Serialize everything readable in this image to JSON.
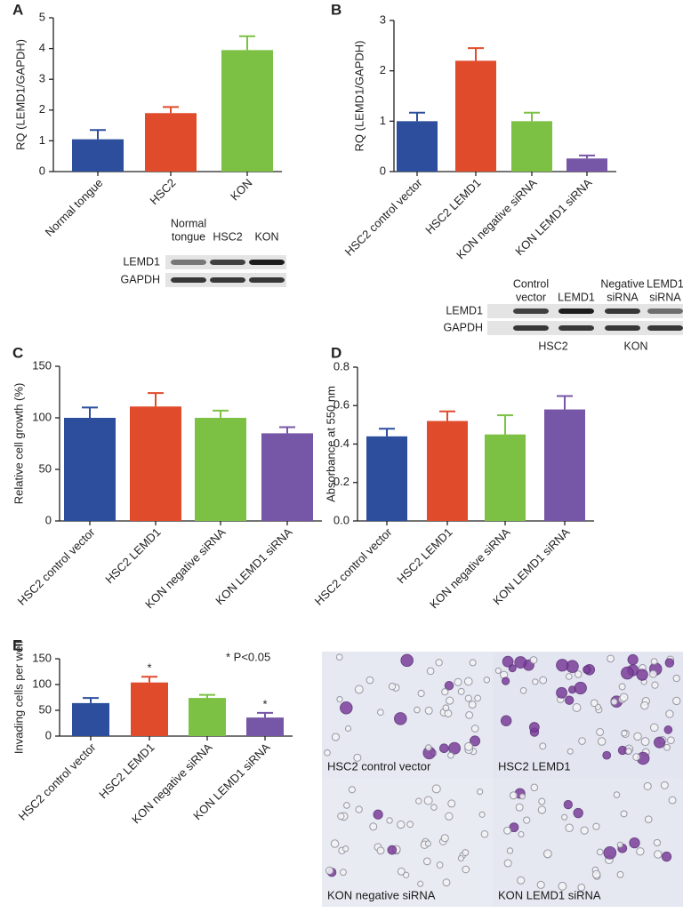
{
  "chart_data": [
    {
      "type": "bar",
      "panel": "A",
      "y_label": "RQ (LEMD1/GAPDH)",
      "categories": [
        "Normal tongue",
        "HSC2",
        "KON"
      ],
      "values": [
        1.05,
        1.9,
        3.95
      ],
      "errors": [
        0.3,
        0.2,
        0.45
      ],
      "colors": [
        "#2c4e9c",
        "#e04b2b",
        "#7cc143"
      ],
      "ylim": [
        0,
        5
      ],
      "yticks": [
        0,
        1,
        2,
        3,
        4,
        5
      ]
    },
    {
      "type": "bar",
      "panel": "B",
      "y_label": "RQ (LEMD1/GAPDH)",
      "categories": [
        "HSC2 control vector",
        "HSC2 LEMD1",
        "KON negative siRNA",
        "KON LEMD1 siRNA"
      ],
      "values": [
        1.0,
        2.2,
        1.0,
        0.26
      ],
      "errors": [
        0.17,
        0.25,
        0.17,
        0.06
      ],
      "colors": [
        "#2c4e9c",
        "#e04b2b",
        "#7cc143",
        "#7656a6"
      ],
      "ylim": [
        0,
        3
      ],
      "yticks": [
        0,
        1,
        2,
        3
      ]
    },
    {
      "type": "bar",
      "panel": "C",
      "y_label": "Relative cell growth (%)",
      "categories": [
        "HSC2 control vector",
        "HSC2 LEMD1",
        "KON negative siRNA",
        "KON LEMD1 siRNA"
      ],
      "values": [
        100,
        111,
        100,
        85
      ],
      "errors": [
        10,
        13,
        7,
        6
      ],
      "colors": [
        "#2c4e9c",
        "#e04b2b",
        "#7cc143",
        "#7656a6"
      ],
      "ylim": [
        0,
        150
      ],
      "yticks": [
        0,
        50,
        100,
        150
      ]
    },
    {
      "type": "bar",
      "panel": "D",
      "y_label": "Absorbance at 550 nm",
      "categories": [
        "HSC2 control vector",
        "HSC2 LEMD1",
        "KON negative siRNA",
        "KON LEMD1 siRNA"
      ],
      "values": [
        0.44,
        0.52,
        0.45,
        0.58
      ],
      "errors": [
        0.04,
        0.05,
        0.1,
        0.07
      ],
      "colors": [
        "#2c4e9c",
        "#e04b2b",
        "#7cc143",
        "#7656a6"
      ],
      "ylim": [
        0,
        0.8
      ],
      "yticks": [
        {
          "value": 0,
          "label": "0.0"
        },
        0.2,
        0.4,
        0.6,
        0.8
      ]
    },
    {
      "type": "bar",
      "panel": "E",
      "y_label": "Invading cells per well",
      "categories": [
        "HSC2 control vector",
        "HSC2 LEMD1",
        "KON negative siRNA",
        "KON LEMD1 siRNA"
      ],
      "values": [
        64,
        104,
        74,
        36
      ],
      "errors": [
        10,
        11,
        6,
        9
      ],
      "significance": [
        null,
        "*",
        null,
        "*"
      ],
      "note": "* P<0.05",
      "colors": [
        "#2c4e9c",
        "#e04b2b",
        "#7cc143",
        "#7656a6"
      ],
      "ylim": [
        0,
        150
      ],
      "yticks": [
        0,
        50,
        100,
        150
      ]
    }
  ],
  "blots": [
    {
      "columns": [
        [
          "Normal",
          "tongue"
        ],
        [
          "HSC2"
        ],
        [
          "KON"
        ]
      ],
      "rows": [
        "LEMD1",
        "GAPDH"
      ]
    },
    {
      "columns": [
        [
          "Control",
          "vector"
        ],
        [
          "LEMD1"
        ],
        [
          "Negative",
          "siRNA"
        ],
        [
          "LEMD1",
          "siRNA"
        ]
      ],
      "rows": [
        "LEMD1",
        "GAPDH"
      ],
      "groups": [
        "HSC2",
        "KON"
      ]
    }
  ],
  "micrograph": {
    "labels": [
      "HSC2 control vector",
      "HSC2 LEMD1",
      "KON negative siRNA",
      "KON LEMD1 siRNA"
    ]
  }
}
